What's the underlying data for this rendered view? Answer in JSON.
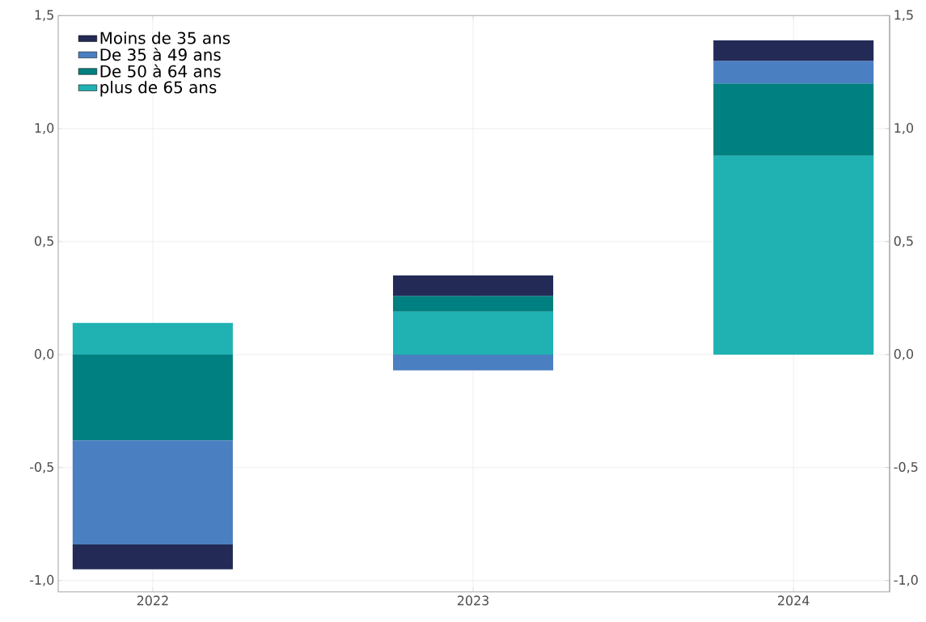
{
  "chart_data": {
    "type": "bar",
    "stacked": true,
    "categories": [
      "2022",
      "2023",
      "2024"
    ],
    "series": [
      {
        "name": "plus de 65 ans",
        "color": "#20b2b2",
        "values": [
          0.14,
          0.19,
          0.88
        ]
      },
      {
        "name": "De 50 à 64 ans",
        "color": "#008080",
        "values": [
          -0.38,
          0.07,
          0.32
        ]
      },
      {
        "name": "De 35 à 49 ans",
        "color": "#4a7fc1",
        "values": [
          -0.46,
          -0.07,
          0.1
        ]
      },
      {
        "name": "Moins de 35 ans",
        "color": "#222a55",
        "values": [
          -0.11,
          0.09,
          0.09
        ]
      }
    ],
    "ylim": [
      -1.05,
      1.5
    ],
    "yticks": [
      {
        "value": -1,
        "label": "-1,0"
      },
      {
        "value": -0.5,
        "label": "-0,5"
      },
      {
        "value": 0,
        "label": "0,0"
      },
      {
        "value": 0.5,
        "label": "0,5"
      },
      {
        "value": 1,
        "label": "1,0"
      },
      {
        "value": 1.5,
        "label": "1,5"
      }
    ],
    "y2lim": [
      -1.05,
      1.5
    ],
    "y2ticks": [
      {
        "value": -1,
        "label": "-1,0"
      },
      {
        "value": -0.5,
        "label": "-0,5"
      },
      {
        "value": 0,
        "label": "0,0"
      },
      {
        "value": 0.5,
        "label": "0,5"
      },
      {
        "value": 1,
        "label": "1,0"
      },
      {
        "value": 1.5,
        "label": "1,5"
      }
    ],
    "grid": true,
    "legend": "top left"
  }
}
